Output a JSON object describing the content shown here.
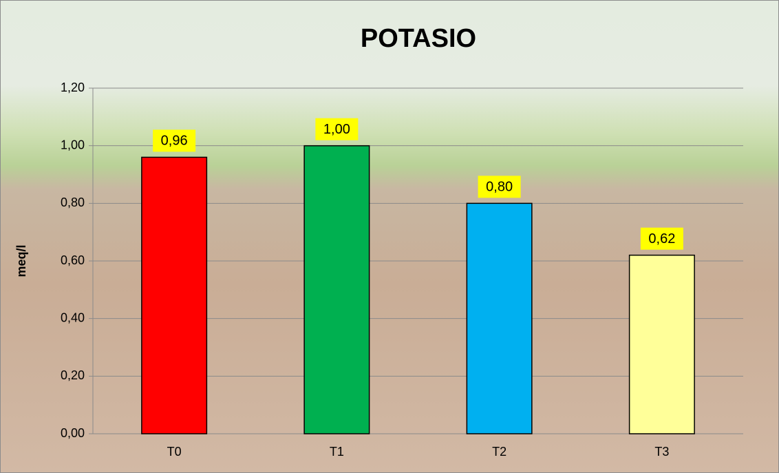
{
  "chart_data": {
    "type": "bar",
    "title": "POTASIO",
    "y_label": "meq/l",
    "categories": [
      "T0",
      "T1",
      "T2",
      "T3"
    ],
    "values": [
      0.96,
      1.0,
      0.8,
      0.62
    ],
    "value_labels": [
      "0,96",
      "1,00",
      "0,80",
      "0,62"
    ],
    "colors": [
      "#ff0000",
      "#00b050",
      "#00b0f0",
      "#ffff99"
    ],
    "ylim": [
      0,
      1.2
    ],
    "yticks": [
      {
        "value": 0,
        "label": "0,00"
      },
      {
        "value": 0.2,
        "label": "0,20"
      },
      {
        "value": 0.4,
        "label": "0,40"
      },
      {
        "value": 0.6,
        "label": "0,60"
      },
      {
        "value": 0.8,
        "label": "0,80"
      },
      {
        "value": 1.0,
        "label": "1,00"
      },
      {
        "value": 1.2,
        "label": "1,20"
      }
    ],
    "grid": true
  }
}
